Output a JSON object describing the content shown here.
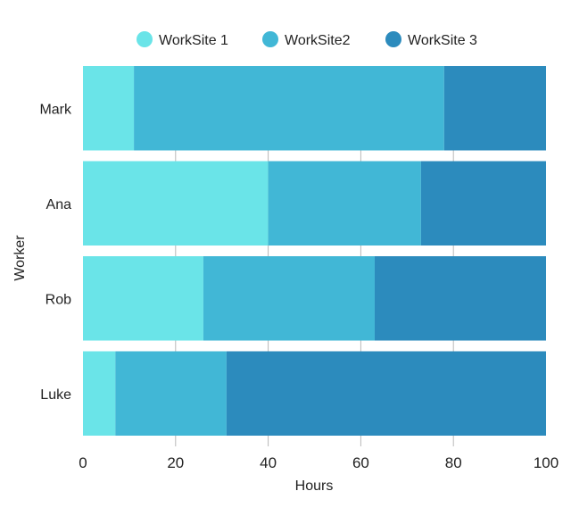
{
  "chart_data": {
    "type": "bar",
    "orientation": "horizontal",
    "stacked": true,
    "categories": [
      "Mark",
      "Ana",
      "Rob",
      "Luke"
    ],
    "series": [
      {
        "name": "WorkSite 1",
        "values": [
          11,
          40,
          26,
          7
        ],
        "color": "#6ae4e8"
      },
      {
        "name": "WorkSite2",
        "values": [
          67,
          33,
          37,
          24
        ],
        "color": "#41b7d6"
      },
      {
        "name": "WorkSite 3",
        "values": [
          22,
          27,
          37,
          69
        ],
        "color": "#2c8bbd"
      }
    ],
    "xlabel": "Hours",
    "ylabel": "Worker",
    "xlim": [
      0,
      100
    ],
    "xticks": [
      "0",
      "20",
      "40",
      "60",
      "80",
      "100"
    ],
    "xtick_values": [
      0,
      20,
      40,
      60,
      80,
      100
    ],
    "grid": true,
    "legend_position": "top-center"
  }
}
